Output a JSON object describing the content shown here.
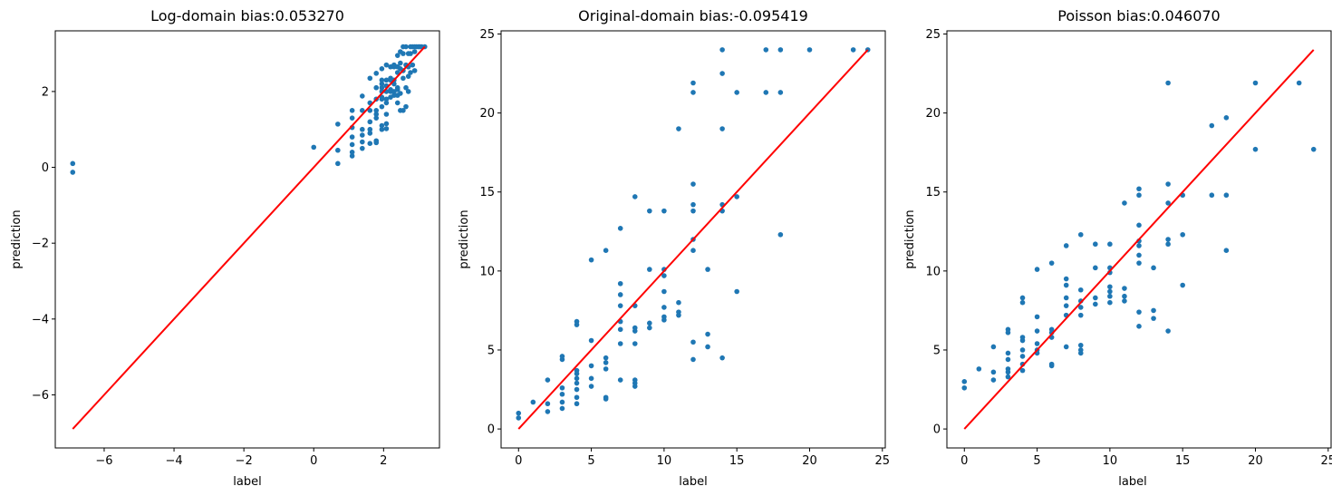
{
  "colors": {
    "points": "#1f77b4",
    "fit_line": "#ff0000",
    "axes": "#000000",
    "background": "#ffffff"
  },
  "chart_data": [
    {
      "type": "scatter",
      "title": "Log-domain bias:0.053270",
      "xlabel": "label",
      "ylabel": "prediction",
      "xlim": [
        -7.4,
        3.6
      ],
      "ylim": [
        -7.4,
        3.6
      ],
      "xticks": [
        -6,
        -4,
        -2,
        0,
        2
      ],
      "yticks": [
        -6,
        -4,
        -2,
        0,
        2
      ],
      "xtick_labels": [
        "−6",
        "−4",
        "−2",
        "0",
        "2"
      ],
      "ytick_labels": [
        "−6",
        "−4",
        "−2",
        "0",
        "2"
      ],
      "grid": false,
      "fit_line": [
        [
          -6.9,
          -6.9
        ],
        [
          3.18,
          3.18
        ]
      ],
      "points": [
        [
          -6.9,
          0.1
        ],
        [
          -6.9,
          -0.13
        ],
        [
          0.0,
          0.53
        ],
        [
          0.69,
          0.1
        ],
        [
          0.69,
          0.45
        ],
        [
          0.69,
          1.14
        ],
        [
          1.1,
          0.3
        ],
        [
          1.1,
          0.4
        ],
        [
          1.1,
          0.6
        ],
        [
          1.1,
          0.8
        ],
        [
          1.1,
          1.05
        ],
        [
          1.1,
          1.3
        ],
        [
          1.1,
          1.5
        ],
        [
          1.39,
          0.5
        ],
        [
          1.39,
          0.67
        ],
        [
          1.39,
          0.85
        ],
        [
          1.39,
          1.0
        ],
        [
          1.39,
          1.5
        ],
        [
          1.39,
          1.88
        ],
        [
          1.61,
          0.63
        ],
        [
          1.61,
          0.9
        ],
        [
          1.61,
          1.0
        ],
        [
          1.61,
          1.2
        ],
        [
          1.61,
          1.5
        ],
        [
          1.61,
          1.7
        ],
        [
          1.61,
          2.35
        ],
        [
          1.79,
          0.65
        ],
        [
          1.79,
          0.7
        ],
        [
          1.79,
          1.3
        ],
        [
          1.79,
          1.4
        ],
        [
          1.79,
          1.5
        ],
        [
          1.79,
          1.8
        ],
        [
          1.79,
          2.1
        ],
        [
          1.79,
          2.48
        ],
        [
          1.95,
          1.0
        ],
        [
          1.95,
          1.1
        ],
        [
          1.95,
          1.6
        ],
        [
          1.95,
          1.8
        ],
        [
          1.95,
          1.85
        ],
        [
          1.95,
          2.0
        ],
        [
          1.95,
          2.1
        ],
        [
          1.95,
          2.2
        ],
        [
          1.95,
          2.3
        ],
        [
          1.95,
          2.6
        ],
        [
          2.08,
          1.02
        ],
        [
          2.08,
          1.15
        ],
        [
          2.08,
          1.4
        ],
        [
          2.08,
          1.7
        ],
        [
          2.08,
          1.8
        ],
        [
          2.08,
          2.0
        ],
        [
          2.08,
          2.15
        ],
        [
          2.08,
          2.3
        ],
        [
          2.08,
          2.7
        ],
        [
          2.2,
          1.85
        ],
        [
          2.2,
          2.0
        ],
        [
          2.2,
          2.05
        ],
        [
          2.2,
          2.3
        ],
        [
          2.2,
          2.35
        ],
        [
          2.2,
          2.65
        ],
        [
          2.3,
          1.9
        ],
        [
          2.3,
          2.0
        ],
        [
          2.3,
          2.2
        ],
        [
          2.3,
          2.3
        ],
        [
          2.3,
          2.65
        ],
        [
          2.3,
          2.7
        ],
        [
          2.4,
          1.7
        ],
        [
          2.4,
          1.9
        ],
        [
          2.4,
          2.05
        ],
        [
          2.4,
          2.1
        ],
        [
          2.4,
          2.5
        ],
        [
          2.4,
          2.65
        ],
        [
          2.4,
          2.95
        ],
        [
          2.48,
          1.5
        ],
        [
          2.48,
          1.95
        ],
        [
          2.48,
          2.6
        ],
        [
          2.48,
          2.75
        ],
        [
          2.48,
          3.05
        ],
        [
          2.56,
          1.5
        ],
        [
          2.56,
          2.35
        ],
        [
          2.56,
          2.55
        ],
        [
          2.56,
          3.0
        ],
        [
          2.56,
          3.18
        ],
        [
          2.64,
          1.6
        ],
        [
          2.64,
          2.1
        ],
        [
          2.64,
          2.7
        ],
        [
          2.64,
          3.18
        ],
        [
          2.71,
          2.0
        ],
        [
          2.71,
          2.4
        ],
        [
          2.71,
          2.65
        ],
        [
          2.71,
          3.0
        ],
        [
          2.77,
          2.5
        ],
        [
          2.77,
          3.0
        ],
        [
          2.77,
          3.18
        ],
        [
          2.83,
          2.7
        ],
        [
          2.83,
          3.18
        ],
        [
          2.89,
          2.55
        ],
        [
          2.89,
          3.05
        ],
        [
          2.89,
          3.18
        ],
        [
          2.94,
          3.18
        ],
        [
          3.0,
          3.18
        ],
        [
          3.04,
          3.18
        ],
        [
          3.09,
          3.18
        ],
        [
          3.18,
          3.18
        ]
      ]
    },
    {
      "type": "scatter",
      "title": "Original-domain bias:-0.095419",
      "xlabel": "label",
      "ylabel": "prediction",
      "xlim": [
        -1.2,
        25.2
      ],
      "ylim": [
        -1.2,
        25.2
      ],
      "xticks": [
        0,
        5,
        10,
        15,
        20,
        25
      ],
      "yticks": [
        0,
        5,
        10,
        15,
        20,
        25
      ],
      "xtick_labels": [
        "0",
        "5",
        "10",
        "15",
        "20",
        "25"
      ],
      "ytick_labels": [
        "0",
        "5",
        "10",
        "15",
        "20",
        "25"
      ],
      "grid": false,
      "fit_line": [
        [
          0,
          0
        ],
        [
          24,
          24
        ]
      ],
      "points": [
        [
          0,
          0.7
        ],
        [
          0,
          1.0
        ],
        [
          1,
          1.7
        ],
        [
          2,
          1.1
        ],
        [
          2,
          1.6
        ],
        [
          2,
          3.1
        ],
        [
          3,
          1.3
        ],
        [
          3,
          1.7
        ],
        [
          3,
          2.2
        ],
        [
          3,
          2.6
        ],
        [
          3,
          4.4
        ],
        [
          3,
          4.6
        ],
        [
          4,
          1.6
        ],
        [
          4,
          2.0
        ],
        [
          4,
          2.5
        ],
        [
          4,
          2.9
        ],
        [
          4,
          3.2
        ],
        [
          4,
          3.5
        ],
        [
          4,
          3.7
        ],
        [
          4,
          6.6
        ],
        [
          4,
          6.8
        ],
        [
          5,
          2.7
        ],
        [
          5,
          3.2
        ],
        [
          5,
          4.0
        ],
        [
          5,
          5.6
        ],
        [
          5,
          10.7
        ],
        [
          6,
          1.9
        ],
        [
          6,
          2.0
        ],
        [
          6,
          3.8
        ],
        [
          6,
          4.2
        ],
        [
          6,
          4.5
        ],
        [
          6,
          11.3
        ],
        [
          7,
          3.1
        ],
        [
          7,
          5.4
        ],
        [
          7,
          6.3
        ],
        [
          7,
          6.8
        ],
        [
          7,
          7.8
        ],
        [
          7,
          8.5
        ],
        [
          7,
          9.2
        ],
        [
          7,
          12.7
        ],
        [
          8,
          2.7
        ],
        [
          8,
          2.9
        ],
        [
          8,
          3.1
        ],
        [
          8,
          5.4
        ],
        [
          8,
          6.2
        ],
        [
          8,
          6.4
        ],
        [
          8,
          7.8
        ],
        [
          8,
          14.7
        ],
        [
          9,
          6.4
        ],
        [
          9,
          6.7
        ],
        [
          9,
          10.1
        ],
        [
          9,
          13.8
        ],
        [
          10,
          6.9
        ],
        [
          10,
          7.1
        ],
        [
          10,
          7.7
        ],
        [
          10,
          8.7
        ],
        [
          10,
          9.7
        ],
        [
          10,
          10.1
        ],
        [
          10,
          13.8
        ],
        [
          11,
          7.2
        ],
        [
          11,
          7.4
        ],
        [
          11,
          8.0
        ],
        [
          11,
          19.0
        ],
        [
          12,
          4.4
        ],
        [
          12,
          5.5
        ],
        [
          12,
          11.3
        ],
        [
          12,
          12.0
        ],
        [
          12,
          13.8
        ],
        [
          12,
          14.2
        ],
        [
          12,
          15.5
        ],
        [
          12,
          21.3
        ],
        [
          12,
          21.9
        ],
        [
          13,
          5.2
        ],
        [
          13,
          6.0
        ],
        [
          13,
          10.1
        ],
        [
          14,
          4.5
        ],
        [
          14,
          13.8
        ],
        [
          14,
          14.2
        ],
        [
          14,
          19.0
        ],
        [
          14,
          22.5
        ],
        [
          14,
          24.0
        ],
        [
          15,
          8.7
        ],
        [
          15,
          14.7
        ],
        [
          15,
          21.3
        ],
        [
          17,
          21.3
        ],
        [
          17,
          24.0
        ],
        [
          18,
          12.3
        ],
        [
          18,
          21.3
        ],
        [
          18,
          24.0
        ],
        [
          20,
          24.0
        ],
        [
          23,
          24.0
        ],
        [
          24,
          24.0
        ]
      ]
    },
    {
      "type": "scatter",
      "title": "Poisson bias:0.046070",
      "xlabel": "label",
      "ylabel": "prediction",
      "xlim": [
        -1.2,
        25.2
      ],
      "ylim": [
        -1.2,
        25.2
      ],
      "xticks": [
        0,
        5,
        10,
        15,
        20,
        25
      ],
      "yticks": [
        0,
        5,
        10,
        15,
        20,
        25
      ],
      "xtick_labels": [
        "0",
        "5",
        "10",
        "15",
        "20",
        "25"
      ],
      "ytick_labels": [
        "0",
        "5",
        "10",
        "15",
        "20",
        "25"
      ],
      "grid": false,
      "fit_line": [
        [
          0,
          0
        ],
        [
          24,
          24
        ]
      ],
      "points": [
        [
          0,
          2.6
        ],
        [
          0,
          3.0
        ],
        [
          1,
          3.8
        ],
        [
          2,
          3.1
        ],
        [
          2,
          3.6
        ],
        [
          2,
          5.2
        ],
        [
          3,
          3.3
        ],
        [
          3,
          3.6
        ],
        [
          3,
          3.8
        ],
        [
          3,
          4.4
        ],
        [
          3,
          4.8
        ],
        [
          3,
          6.1
        ],
        [
          3,
          6.3
        ],
        [
          4,
          3.7
        ],
        [
          4,
          4.1
        ],
        [
          4,
          4.6
        ],
        [
          4,
          5.0
        ],
        [
          4,
          5.6
        ],
        [
          4,
          5.8
        ],
        [
          4,
          8.0
        ],
        [
          4,
          8.3
        ],
        [
          5,
          4.8
        ],
        [
          5,
          5.0
        ],
        [
          5,
          5.4
        ],
        [
          5,
          6.2
        ],
        [
          5,
          7.1
        ],
        [
          5,
          10.1
        ],
        [
          6,
          4.0
        ],
        [
          6,
          4.1
        ],
        [
          6,
          5.8
        ],
        [
          6,
          6.1
        ],
        [
          6,
          6.3
        ],
        [
          6,
          10.5
        ],
        [
          7,
          5.2
        ],
        [
          7,
          7.2
        ],
        [
          7,
          7.8
        ],
        [
          7,
          8.3
        ],
        [
          7,
          9.1
        ],
        [
          7,
          9.5
        ],
        [
          7,
          11.6
        ],
        [
          8,
          4.8
        ],
        [
          8,
          5.0
        ],
        [
          8,
          5.3
        ],
        [
          8,
          7.2
        ],
        [
          8,
          7.7
        ],
        [
          8,
          8.1
        ],
        [
          8,
          8.8
        ],
        [
          8,
          12.3
        ],
        [
          9,
          7.9
        ],
        [
          9,
          8.3
        ],
        [
          9,
          10.2
        ],
        [
          9,
          11.7
        ],
        [
          10,
          8.0
        ],
        [
          10,
          8.4
        ],
        [
          10,
          8.7
        ],
        [
          10,
          9.0
        ],
        [
          10,
          9.9
        ],
        [
          10,
          10.2
        ],
        [
          10,
          11.7
        ],
        [
          11,
          8.1
        ],
        [
          11,
          8.4
        ],
        [
          11,
          8.9
        ],
        [
          11,
          14.3
        ],
        [
          12,
          6.5
        ],
        [
          12,
          7.4
        ],
        [
          12,
          10.5
        ],
        [
          12,
          11.0
        ],
        [
          12,
          11.6
        ],
        [
          12,
          11.9
        ],
        [
          12,
          12.9
        ],
        [
          12,
          14.8
        ],
        [
          12,
          15.2
        ],
        [
          13,
          7.0
        ],
        [
          13,
          7.5
        ],
        [
          13,
          10.2
        ],
        [
          14,
          6.2
        ],
        [
          14,
          11.7
        ],
        [
          14,
          12.0
        ],
        [
          14,
          14.3
        ],
        [
          14,
          15.5
        ],
        [
          14,
          21.9
        ],
        [
          15,
          9.1
        ],
        [
          15,
          12.3
        ],
        [
          15,
          14.8
        ],
        [
          17,
          14.8
        ],
        [
          17,
          19.2
        ],
        [
          18,
          11.3
        ],
        [
          18,
          14.8
        ],
        [
          18,
          19.7
        ],
        [
          20,
          17.7
        ],
        [
          20,
          21.9
        ],
        [
          23,
          21.9
        ],
        [
          24,
          17.7
        ]
      ]
    }
  ]
}
